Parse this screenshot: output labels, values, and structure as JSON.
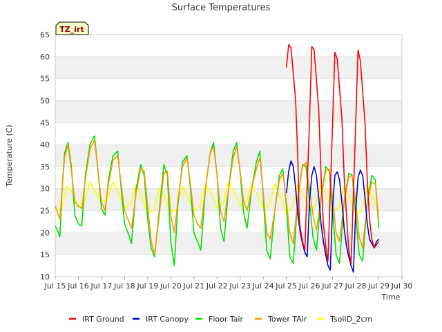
{
  "chart_data": {
    "type": "line",
    "title": "Surface Temperatures",
    "xlabel": "Time",
    "ylabel": "Temperature (C)",
    "site_label": "TZ_irt",
    "ylim": [
      10,
      65
    ],
    "xlim": [
      15,
      30
    ],
    "y_ticks": [
      10,
      15,
      20,
      25,
      30,
      35,
      40,
      45,
      50,
      55,
      60,
      65
    ],
    "x_ticks": [
      {
        "day": 15,
        "label": "Jul 15"
      },
      {
        "day": 16,
        "label": "Jul 16"
      },
      {
        "day": 17,
        "label": "Jul 17"
      },
      {
        "day": 18,
        "label": "Jul 18"
      },
      {
        "day": 19,
        "label": "Jul 19"
      },
      {
        "day": 20,
        "label": "Jul 20"
      },
      {
        "day": 21,
        "label": "Jul 21"
      },
      {
        "day": 22,
        "label": "Jul 22"
      },
      {
        "day": 23,
        "label": "Jul 23"
      },
      {
        "day": 24,
        "label": "Jul 24"
      },
      {
        "day": 25,
        "label": "Jul 25"
      },
      {
        "day": 26,
        "label": "Jul 26"
      },
      {
        "day": 27,
        "label": "Jul 27"
      },
      {
        "day": 28,
        "label": "Jul 28"
      },
      {
        "day": 29,
        "label": "Jul 29"
      },
      {
        "day": 30,
        "label": "Jul 30"
      }
    ],
    "grid": "horizontal bands",
    "legend_position": "bottom",
    "series": [
      {
        "name": "IRT Ground",
        "color": "#ff0000",
        "x": [
          25.0,
          25.1,
          25.2,
          25.4,
          25.5,
          25.55,
          25.6,
          25.7,
          25.8,
          26.0,
          26.1,
          26.2,
          26.4,
          26.5,
          26.6,
          26.7,
          26.8,
          27.0,
          27.1,
          27.2,
          27.4,
          27.5,
          27.6,
          27.7,
          27.8,
          28.0,
          28.1,
          28.2,
          28.4,
          28.5,
          28.6,
          28.7,
          28.8,
          29.0
        ],
        "y": [
          57.5,
          62.7,
          62.0,
          50.0,
          36.0,
          24.0,
          21.0,
          18.0,
          16.0,
          45.0,
          62.3,
          61.5,
          48.0,
          33.0,
          22.0,
          17.0,
          13.5,
          45.0,
          61.0,
          59.5,
          46.0,
          33.0,
          24.0,
          16.0,
          13.0,
          45.0,
          61.5,
          59.0,
          45.0,
          32.0,
          23.0,
          18.5,
          16.5,
          18.0
        ]
      },
      {
        "name": "IRT Canopy",
        "color": "#0000cc",
        "x": [
          25.0,
          25.1,
          25.2,
          25.3,
          25.4,
          25.5,
          25.6,
          25.7,
          25.8,
          25.9,
          26.0,
          26.1,
          26.2,
          26.3,
          26.4,
          26.5,
          26.6,
          26.7,
          26.8,
          26.9,
          27.0,
          27.1,
          27.2,
          27.3,
          27.4,
          27.5,
          27.6,
          27.7,
          27.8,
          27.9,
          28.0,
          28.1,
          28.2,
          28.3,
          28.4,
          28.5,
          28.6,
          28.7,
          28.8,
          28.9,
          29.0
        ],
        "y": [
          29.0,
          34.0,
          36.3,
          35.0,
          30.0,
          24.0,
          20.0,
          17.5,
          15.5,
          14.5,
          27.0,
          33.0,
          35.0,
          33.0,
          28.0,
          22.0,
          18.0,
          15.0,
          12.5,
          11.5,
          26.0,
          33.0,
          33.8,
          32.0,
          27.0,
          21.0,
          17.0,
          14.5,
          12.5,
          11.0,
          25.0,
          32.5,
          34.2,
          33.0,
          28.0,
          22.0,
          18.5,
          17.5,
          16.5,
          18.0,
          18.5
        ]
      },
      {
        "name": "Floor Tair",
        "color": "#00e000",
        "x": [
          15.0,
          15.1,
          15.2,
          15.3,
          15.4,
          15.55,
          15.7,
          15.85,
          16.0,
          16.15,
          16.3,
          16.5,
          16.7,
          16.85,
          17.0,
          17.15,
          17.3,
          17.5,
          17.7,
          17.85,
          18.0,
          18.15,
          18.3,
          18.5,
          18.7,
          18.85,
          19.0,
          19.15,
          19.3,
          19.5,
          19.7,
          19.85,
          20.0,
          20.15,
          20.3,
          20.5,
          20.7,
          20.85,
          21.0,
          21.15,
          21.3,
          21.5,
          21.7,
          21.85,
          22.0,
          22.15,
          22.3,
          22.5,
          22.7,
          22.85,
          23.0,
          23.15,
          23.3,
          23.5,
          23.7,
          23.85,
          24.0,
          24.15,
          24.3,
          24.5,
          24.7,
          24.85,
          25.0,
          25.15,
          25.3,
          25.5,
          25.7,
          25.85,
          26.0,
          26.15,
          26.3,
          26.5,
          26.7,
          26.85,
          27.0,
          27.15,
          27.3,
          27.5,
          27.7,
          27.85,
          28.0,
          28.15,
          28.3,
          28.5,
          28.7,
          28.85,
          29.0
        ],
        "y": [
          21.5,
          20.5,
          19.0,
          30.0,
          38.0,
          40.5,
          35.0,
          24.0,
          22.0,
          21.5,
          33.0,
          40.0,
          42.0,
          34.0,
          25.5,
          24.0,
          32.0,
          37.5,
          38.5,
          30.0,
          22.0,
          20.0,
          17.5,
          30.0,
          35.5,
          33.0,
          23.0,
          16.5,
          14.5,
          25.0,
          35.5,
          33.0,
          18.0,
          12.5,
          26.0,
          36.0,
          37.5,
          30.0,
          20.0,
          18.0,
          16.0,
          30.0,
          38.0,
          40.5,
          33.0,
          21.0,
          18.0,
          30.0,
          38.5,
          40.5,
          33.5,
          24.5,
          21.0,
          30.0,
          36.0,
          38.5,
          28.0,
          16.0,
          14.0,
          25.0,
          33.0,
          34.5,
          26.0,
          14.5,
          13.0,
          28.0,
          35.5,
          35.0,
          27.0,
          19.0,
          16.0,
          28.0,
          35.0,
          34.0,
          25.0,
          15.0,
          13.0,
          27.0,
          33.5,
          33.0,
          24.0,
          15.0,
          13.5,
          27.0,
          33.0,
          32.0,
          21.0
        ]
      },
      {
        "name": "Tower TAir",
        "color": "#ff9900",
        "x": [
          15.0,
          15.1,
          15.2,
          15.3,
          15.4,
          15.55,
          15.7,
          15.85,
          16.0,
          16.15,
          16.3,
          16.5,
          16.7,
          16.85,
          17.0,
          17.15,
          17.3,
          17.5,
          17.7,
          17.85,
          18.0,
          18.15,
          18.3,
          18.5,
          18.7,
          18.85,
          19.0,
          19.15,
          19.3,
          19.5,
          19.7,
          19.85,
          20.0,
          20.15,
          20.3,
          20.5,
          20.7,
          20.85,
          21.0,
          21.15,
          21.3,
          21.5,
          21.7,
          21.85,
          22.0,
          22.15,
          22.3,
          22.5,
          22.7,
          22.85,
          23.0,
          23.15,
          23.3,
          23.5,
          23.7,
          23.85,
          24.0,
          24.15,
          24.3,
          24.5,
          24.7,
          24.85,
          25.0,
          25.15,
          25.3,
          25.5,
          25.7,
          25.85,
          26.0,
          26.15,
          26.3,
          26.5,
          26.7,
          26.85,
          27.0,
          27.15,
          27.3,
          27.5,
          27.7,
          27.85,
          28.0,
          28.15,
          28.3,
          28.5,
          28.7,
          28.85,
          29.0
        ],
        "y": [
          26.0,
          24.5,
          23.0,
          30.0,
          37.0,
          40.0,
          34.0,
          27.0,
          26.0,
          25.5,
          32.0,
          39.0,
          41.0,
          34.0,
          27.0,
          25.0,
          31.0,
          36.5,
          37.5,
          31.0,
          25.0,
          23.0,
          21.0,
          29.0,
          34.5,
          34.0,
          26.0,
          18.0,
          15.0,
          24.0,
          33.5,
          34.0,
          24.0,
          20.0,
          27.0,
          35.0,
          37.0,
          31.0,
          24.0,
          22.0,
          21.0,
          30.0,
          38.0,
          39.5,
          33.0,
          25.0,
          22.5,
          30.0,
          37.0,
          39.5,
          34.0,
          27.0,
          25.0,
          30.0,
          34.5,
          37.0,
          29.0,
          20.0,
          18.5,
          25.0,
          32.0,
          33.5,
          27.0,
          20.0,
          17.5,
          28.0,
          35.0,
          36.0,
          30.0,
          24.0,
          20.5,
          28.0,
          34.0,
          34.5,
          28.0,
          20.0,
          18.0,
          27.0,
          32.5,
          33.0,
          27.0,
          19.0,
          16.5,
          27.0,
          31.5,
          31.0,
          22.5
        ]
      },
      {
        "name": "TsoilD_2cm",
        "color": "#ffff00",
        "x": [
          15.0,
          15.25,
          15.5,
          15.75,
          16.0,
          16.25,
          16.5,
          16.75,
          17.0,
          17.25,
          17.5,
          17.75,
          18.0,
          18.25,
          18.5,
          18.75,
          19.0,
          19.25,
          19.5,
          19.75,
          20.0,
          20.25,
          20.5,
          20.75,
          21.0,
          21.25,
          21.5,
          21.75,
          22.0,
          22.25,
          22.5,
          22.75,
          23.0,
          23.25,
          23.5,
          23.75,
          24.0,
          24.25,
          24.5,
          24.75,
          25.0,
          25.25,
          25.5,
          25.75,
          26.0,
          26.25,
          26.5,
          26.75,
          27.0,
          27.25,
          27.5,
          27.75,
          28.0,
          28.25,
          28.5,
          28.75,
          29.0
        ],
        "y": [
          25.5,
          25.0,
          30.5,
          29.0,
          26.0,
          27.0,
          31.5,
          29.0,
          27.0,
          27.5,
          31.5,
          29.0,
          25.5,
          26.5,
          31.0,
          28.0,
          24.5,
          25.0,
          30.0,
          28.0,
          24.5,
          25.5,
          30.5,
          28.0,
          25.0,
          26.0,
          31.0,
          29.0,
          25.5,
          26.5,
          31.5,
          29.0,
          26.0,
          27.0,
          31.0,
          28.5,
          25.5,
          26.0,
          31.0,
          28.0,
          24.5,
          25.5,
          31.0,
          28.5,
          25.0,
          26.0,
          31.0,
          28.5,
          24.5,
          25.5,
          30.5,
          28.0,
          24.0,
          25.0,
          30.5,
          28.0,
          24.5
        ]
      }
    ]
  }
}
